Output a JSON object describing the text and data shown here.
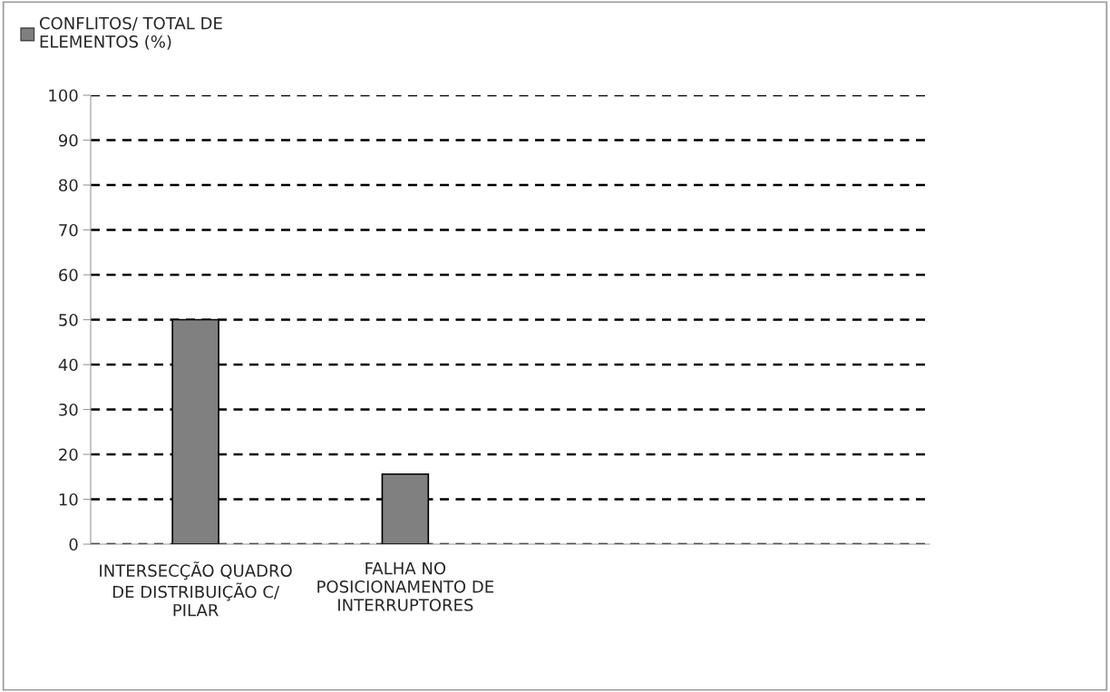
{
  "chart_data": {
    "type": "bar",
    "categories": [
      "INTERSECÇÃO QUADRO DE DISTRIBUIÇÃO C/ PILAR",
      "FALHA NO POSICIONAMENTO DE INTERRUPTORES",
      null,
      null
    ],
    "series": [
      {
        "name": "CONFLITOS/ TOTAL DE ELEMENTOS (%)",
        "color": "#808080",
        "values": [
          50,
          15.6,
          null,
          null
        ]
      }
    ],
    "ylim": [
      0,
      100
    ],
    "yticks": [
      0,
      10,
      20,
      30,
      40,
      50,
      60,
      70,
      80,
      90,
      100
    ],
    "grid": "y",
    "legend": "top left"
  }
}
